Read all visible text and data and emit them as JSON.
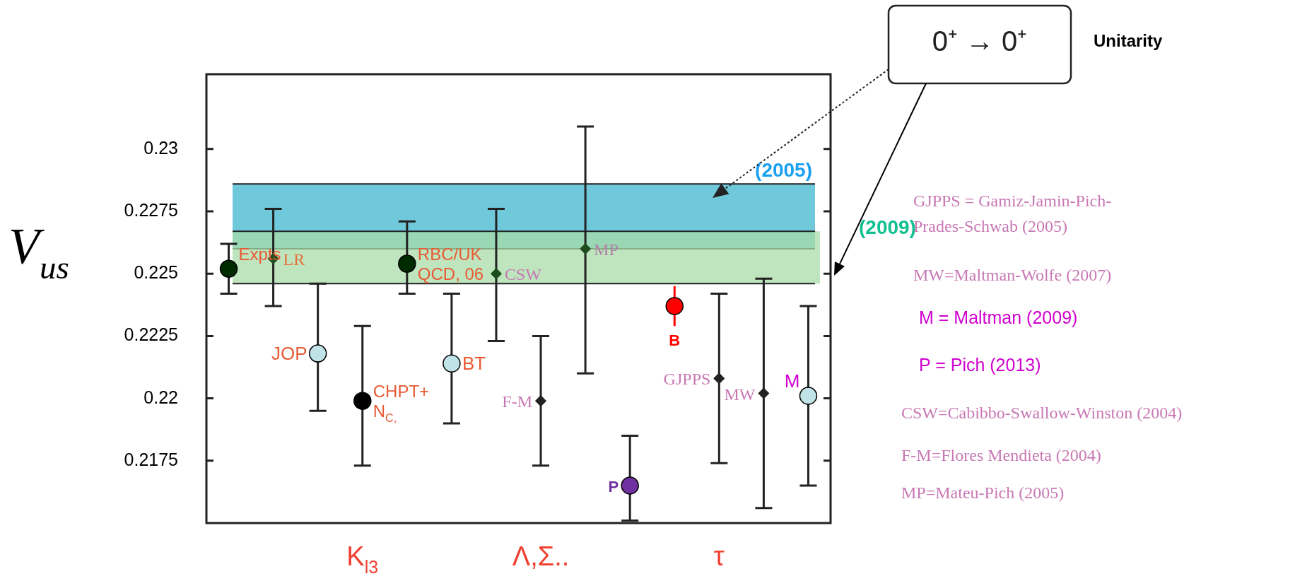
{
  "chart_data": {
    "type": "scatter",
    "ylabel": "V$_{us}$",
    "categories": [
      null,
      null,
      null,
      "K$_{l3}$",
      null,
      null,
      null,
      "Λ,Σ..",
      null,
      null,
      null,
      "τ",
      null,
      null
    ],
    "ylim": [
      0.215,
      0.233
    ],
    "yticks": [
      0.2175,
      0.22,
      0.2225,
      0.225,
      0.2275,
      0.23
    ],
    "grid": false,
    "legend": false,
    "bands": [
      {
        "axis": "y",
        "from": 0.226,
        "to": 0.2286,
        "label": "(2005)",
        "color": "#70c9da"
      },
      {
        "axis": "y",
        "from": 0.2246,
        "to": 0.2267,
        "label": "(2009)",
        "color": "#a8dca8"
      }
    ],
    "series": [
      {
        "name": "Expts",
        "color": "#002a00",
        "marker": "circle",
        "values": [
          0.2252,
          null,
          null,
          null,
          null,
          null,
          null,
          null,
          null,
          null,
          null,
          null,
          null,
          null
        ],
        "errors": [
          [
            0.2242,
            0.2262
          ],
          null,
          null,
          null,
          null,
          null,
          null,
          null,
          null,
          null,
          null,
          null,
          null,
          null
        ]
      },
      {
        "name": "LR",
        "color": "#1e4d1e",
        "marker": "diamond",
        "values": [
          null,
          0.2256,
          null,
          null,
          null,
          null,
          null,
          null,
          null,
          null,
          null,
          null,
          null,
          null
        ],
        "errors": [
          null,
          [
            0.2237,
            0.2276
          ],
          null,
          null,
          null,
          null,
          null,
          null,
          null,
          null,
          null,
          null,
          null,
          null
        ]
      },
      {
        "name": "JOP",
        "color": "#bfe3e6",
        "marker": "circle",
        "values": [
          null,
          null,
          0.2218,
          null,
          null,
          null,
          null,
          null,
          null,
          null,
          null,
          null,
          null,
          null
        ],
        "errors": [
          null,
          null,
          [
            0.2195,
            0.2246
          ],
          null,
          null,
          null,
          null,
          null,
          null,
          null,
          null,
          null,
          null,
          null
        ]
      },
      {
        "name": "CHPT+\nN$_{C,}$",
        "color": "#000000",
        "marker": "circle",
        "values": [
          null,
          null,
          null,
          0.2199,
          null,
          null,
          null,
          null,
          null,
          null,
          null,
          null,
          null,
          null
        ],
        "errors": [
          null,
          null,
          null,
          [
            0.2173,
            0.2229
          ],
          null,
          null,
          null,
          null,
          null,
          null,
          null,
          null,
          null,
          null
        ]
      },
      {
        "name": "RBC/UK\nQCD, 06",
        "color": "#002a00",
        "marker": "circle",
        "values": [
          null,
          null,
          null,
          null,
          0.2254,
          null,
          null,
          null,
          null,
          null,
          null,
          null,
          null,
          null
        ],
        "errors": [
          null,
          null,
          null,
          null,
          [
            0.2242,
            0.2271
          ],
          null,
          null,
          null,
          null,
          null,
          null,
          null,
          null,
          null
        ]
      },
      {
        "name": "BT",
        "color": "#bfe3e6",
        "marker": "circle",
        "values": [
          null,
          null,
          null,
          null,
          null,
          0.2214,
          null,
          null,
          null,
          null,
          null,
          null,
          null,
          null
        ],
        "errors": [
          null,
          null,
          null,
          null,
          null,
          [
            0.219,
            0.2242
          ],
          null,
          null,
          null,
          null,
          null,
          null,
          null,
          null
        ]
      },
      {
        "name": "CSW",
        "color": "#1e4d1e",
        "marker": "diamond",
        "values": [
          null,
          null,
          null,
          null,
          null,
          null,
          0.225,
          null,
          null,
          null,
          null,
          null,
          null,
          null
        ],
        "errors": [
          null,
          null,
          null,
          null,
          null,
          null,
          [
            0.2223,
            0.2276
          ],
          null,
          null,
          null,
          null,
          null,
          null,
          null
        ]
      },
      {
        "name": "F-M",
        "color": "#222222",
        "marker": "diamond",
        "values": [
          null,
          null,
          null,
          null,
          null,
          null,
          null,
          0.2199,
          null,
          null,
          null,
          null,
          null,
          null
        ],
        "errors": [
          null,
          null,
          null,
          null,
          null,
          null,
          null,
          [
            0.2173,
            0.2225
          ],
          null,
          null,
          null,
          null,
          null,
          null
        ]
      },
      {
        "name": "MP",
        "color": "#1e4d1e",
        "marker": "diamond",
        "values": [
          null,
          null,
          null,
          null,
          null,
          null,
          null,
          null,
          0.226,
          null,
          null,
          null,
          null,
          null
        ],
        "errors": [
          null,
          null,
          null,
          null,
          null,
          null,
          null,
          null,
          [
            0.221,
            0.2309
          ],
          null,
          null,
          null,
          null,
          null
        ]
      },
      {
        "name": "P",
        "color": "#7030a0",
        "marker": "circle",
        "values": [
          null,
          null,
          null,
          null,
          null,
          null,
          null,
          null,
          null,
          0.2165,
          null,
          null,
          null,
          null
        ],
        "errors": [
          null,
          null,
          null,
          null,
          null,
          null,
          null,
          null,
          null,
          [
            0.2151,
            0.2185
          ],
          null,
          null,
          null,
          null
        ]
      },
      {
        "name": "B",
        "color": "#ff0000",
        "marker": "circle",
        "values": [
          null,
          null,
          null,
          null,
          null,
          null,
          null,
          null,
          null,
          null,
          0.2237,
          null,
          null,
          null
        ],
        "errors": [
          null,
          null,
          null,
          null,
          null,
          null,
          null,
          null,
          null,
          null,
          [
            0.2229,
            0.2245
          ],
          null,
          null,
          null
        ]
      },
      {
        "name": "GJPPS",
        "color": "#222222",
        "marker": "diamond",
        "values": [
          null,
          null,
          null,
          null,
          null,
          null,
          null,
          null,
          null,
          null,
          null,
          0.2208,
          null,
          null
        ],
        "errors": [
          null,
          null,
          null,
          null,
          null,
          null,
          null,
          null,
          null,
          null,
          null,
          [
            0.2174,
            0.2242
          ],
          null,
          null
        ]
      },
      {
        "name": "MW",
        "color": "#222222",
        "marker": "diamond",
        "values": [
          null,
          null,
          null,
          null,
          null,
          null,
          null,
          null,
          null,
          null,
          null,
          null,
          0.2202,
          null
        ],
        "errors": [
          null,
          null,
          null,
          null,
          null,
          null,
          null,
          null,
          null,
          null,
          null,
          null,
          [
            0.2156,
            0.2248
          ],
          null
        ]
      },
      {
        "name": "M",
        "color": "#bfe3e6",
        "marker": "circle",
        "values": [
          null,
          null,
          null,
          null,
          null,
          null,
          null,
          null,
          null,
          null,
          null,
          null,
          null,
          0.2201
        ],
        "errors": [
          null,
          null,
          null,
          null,
          null,
          null,
          null,
          null,
          null,
          null,
          null,
          null,
          null,
          [
            0.2165,
            0.2237
          ]
        ]
      }
    ],
    "annotations": [
      "0⁺ → 0⁺",
      "Unitarity",
      "GJPPS = Gamiz-Jamin-Pich-\nPrades-Schwab (2005)",
      "MW=Maltman-Wolfe (2007)",
      "M = Maltman (2009)",
      "P = Pich (2013)",
      "CSW=Cabibbo-Swallow-Winston (2004)",
      "F-M=Flores Mendieta (2004)",
      "MP=Mateu-Pich (2005)"
    ]
  }
}
